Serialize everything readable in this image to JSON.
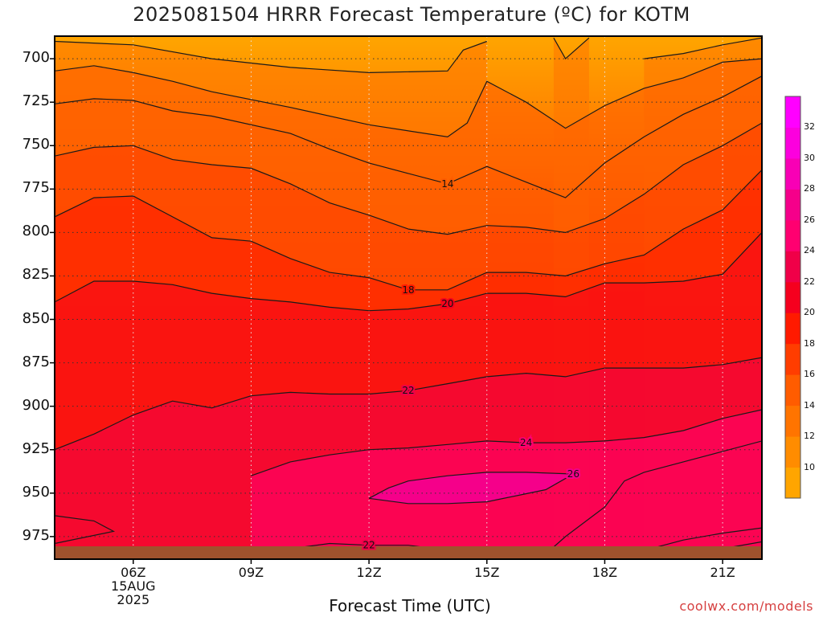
{
  "chart_data": {
    "type": "heatmap",
    "title": "2025081504 HRRR Forecast Temperature (ºC) for KOTM",
    "xlabel": "Forecast Time (UTC)",
    "ylabel": "",
    "x_ticks": [
      {
        "hour": 6,
        "label": "06Z"
      },
      {
        "hour": 9,
        "label": "09Z"
      },
      {
        "hour": 12,
        "label": "12Z"
      },
      {
        "hour": 15,
        "label": "15Z"
      },
      {
        "hour": 18,
        "label": "18Z"
      },
      {
        "hour": 21,
        "label": "21Z"
      }
    ],
    "x_date_lines": [
      "15AUG",
      "2025"
    ],
    "xlim": [
      4,
      22
    ],
    "y_ticks": [
      700,
      725,
      750,
      775,
      800,
      825,
      850,
      875,
      900,
      925,
      950,
      975
    ],
    "ylim": [
      687,
      988
    ],
    "y_inverted": true,
    "grid": true,
    "colorbar": {
      "levels": [
        8,
        10,
        12,
        14,
        16,
        18,
        20,
        22,
        24,
        26,
        28,
        30,
        32,
        34
      ],
      "tick_labels": [
        "10",
        "12",
        "14",
        "16",
        "18",
        "20",
        "22",
        "24",
        "26",
        "28",
        "30",
        "32"
      ],
      "colors": [
        "#ffa500",
        "#ff8c00",
        "#ff7400",
        "#ff5c00",
        "#ff3d00",
        "#ff1a00",
        "#f5001e",
        "#f00048",
        "#ff0070",
        "#f5008a",
        "#f800b5",
        "#fc00de",
        "#ff00ff"
      ]
    },
    "contours": [
      {
        "level": 12,
        "label": "",
        "points": [
          [
            4,
            690
          ],
          [
            6,
            692
          ],
          [
            8,
            700
          ],
          [
            10,
            705
          ],
          [
            12,
            708
          ],
          [
            14,
            707
          ],
          [
            14.4,
            695
          ],
          [
            15,
            690
          ]
        ]
      },
      {
        "level": 12,
        "label": "",
        "points": [
          [
            16.7,
            688
          ],
          [
            17,
            700
          ],
          [
            17.6,
            688
          ]
        ]
      },
      {
        "level": 12,
        "label": "",
        "points": [
          [
            19,
            700
          ],
          [
            20,
            697
          ],
          [
            21,
            692
          ],
          [
            22,
            688
          ]
        ]
      },
      {
        "level": 14,
        "label": "",
        "points": [
          [
            4,
            707
          ],
          [
            5,
            704
          ],
          [
            6,
            708
          ],
          [
            7,
            713
          ],
          [
            8,
            719
          ],
          [
            10,
            728
          ],
          [
            12,
            738
          ],
          [
            14,
            745
          ],
          [
            14.5,
            737
          ],
          [
            15,
            713
          ],
          [
            16,
            725
          ],
          [
            17,
            740
          ],
          [
            18,
            727
          ],
          [
            19,
            717
          ],
          [
            20,
            711
          ],
          [
            21,
            702
          ],
          [
            22,
            700
          ]
        ]
      },
      {
        "level": 14,
        "label": "14",
        "points": [
          [
            4,
            726
          ],
          [
            5,
            723
          ],
          [
            6,
            724
          ],
          [
            7,
            730
          ],
          [
            8,
            733
          ],
          [
            10,
            743
          ],
          [
            11,
            752
          ],
          [
            12,
            760
          ],
          [
            13,
            766
          ],
          [
            14,
            772
          ],
          [
            15,
            762
          ],
          [
            16,
            771
          ],
          [
            17,
            780
          ],
          [
            18,
            760
          ],
          [
            19,
            745
          ],
          [
            20,
            732
          ],
          [
            21,
            722
          ],
          [
            22,
            710
          ]
        ]
      },
      {
        "level": 16,
        "label": "",
        "points": [
          [
            4,
            756
          ],
          [
            5,
            751
          ],
          [
            6,
            750
          ],
          [
            7,
            758
          ],
          [
            8,
            761
          ],
          [
            9,
            763
          ],
          [
            10,
            772
          ],
          [
            11,
            783
          ],
          [
            12,
            790
          ],
          [
            13,
            798
          ],
          [
            14,
            801
          ],
          [
            15,
            796
          ],
          [
            16,
            797
          ],
          [
            17,
            800
          ],
          [
            18,
            792
          ],
          [
            19,
            778
          ],
          [
            20,
            761
          ],
          [
            21,
            750
          ],
          [
            22,
            737
          ]
        ]
      },
      {
        "level": 18,
        "label": "18",
        "points": [
          [
            4,
            791
          ],
          [
            5,
            780
          ],
          [
            6,
            779
          ],
          [
            7,
            791
          ],
          [
            8,
            803
          ],
          [
            9,
            805
          ],
          [
            10,
            815
          ],
          [
            11,
            823
          ],
          [
            12,
            826
          ],
          [
            13,
            833
          ],
          [
            14,
            833
          ],
          [
            15,
            823
          ],
          [
            16,
            823
          ],
          [
            17,
            825
          ],
          [
            18,
            818
          ],
          [
            19,
            813
          ],
          [
            20,
            798
          ],
          [
            21,
            787
          ],
          [
            22,
            764
          ]
        ]
      },
      {
        "level": 20,
        "label": "20",
        "points": [
          [
            4,
            840
          ],
          [
            5,
            828
          ],
          [
            6,
            828
          ],
          [
            7,
            830
          ],
          [
            8,
            835
          ],
          [
            9,
            838
          ],
          [
            10,
            840
          ],
          [
            11,
            843
          ],
          [
            12,
            845
          ],
          [
            13,
            844
          ],
          [
            14,
            841
          ],
          [
            15,
            835
          ],
          [
            16,
            835
          ],
          [
            17,
            837
          ],
          [
            18,
            829
          ],
          [
            19,
            829
          ],
          [
            20,
            828
          ],
          [
            21,
            824
          ],
          [
            21.5,
            812
          ],
          [
            22,
            800
          ]
        ]
      },
      {
        "level": 22,
        "label": "22",
        "points": [
          [
            4,
            925
          ],
          [
            5,
            916
          ],
          [
            6,
            905
          ],
          [
            7,
            897
          ],
          [
            8,
            901
          ],
          [
            9,
            894
          ],
          [
            10,
            892
          ],
          [
            11,
            893
          ],
          [
            12,
            893
          ],
          [
            13,
            891
          ],
          [
            14,
            887
          ],
          [
            15,
            883
          ],
          [
            16,
            881
          ],
          [
            17,
            883
          ],
          [
            18,
            878
          ],
          [
            19,
            878
          ],
          [
            20,
            878
          ],
          [
            21,
            876
          ],
          [
            22,
            872
          ]
        ]
      },
      {
        "level": 24,
        "label": "24",
        "points": [
          [
            9,
            940
          ],
          [
            10,
            932
          ],
          [
            11,
            928
          ],
          [
            12,
            925
          ],
          [
            13,
            924
          ],
          [
            14,
            922
          ],
          [
            15,
            920
          ],
          [
            16,
            921
          ],
          [
            17,
            921
          ],
          [
            18,
            920
          ],
          [
            19,
            918
          ],
          [
            20,
            914
          ],
          [
            21,
            907
          ],
          [
            22,
            902
          ]
        ]
      },
      {
        "level": 26,
        "label": "26",
        "points": [
          [
            12,
            953
          ],
          [
            12.5,
            947
          ],
          [
            13,
            943
          ],
          [
            14,
            940
          ],
          [
            15,
            938
          ],
          [
            16,
            938
          ],
          [
            17.2,
            939
          ],
          [
            16.5,
            948
          ],
          [
            15,
            955
          ],
          [
            14,
            956
          ],
          [
            13,
            956
          ],
          [
            12,
            953
          ]
        ]
      },
      {
        "level": 26,
        "label": "",
        "points": [
          [
            16.5,
            985
          ],
          [
            17,
            975
          ],
          [
            18,
            958
          ],
          [
            18.5,
            943
          ],
          [
            19,
            938
          ],
          [
            20,
            932
          ],
          [
            21,
            926
          ],
          [
            22,
            920
          ]
        ]
      },
      {
        "level": 22,
        "label": "",
        "points": [
          [
            4,
            963
          ],
          [
            5,
            966
          ],
          [
            5.5,
            972
          ],
          [
            4,
            979
          ]
        ]
      },
      {
        "level": 22,
        "label": "22",
        "points": [
          [
            5,
            986
          ],
          [
            6,
            984
          ],
          [
            8,
            982
          ],
          [
            10,
            982
          ],
          [
            11,
            979
          ],
          [
            12,
            980
          ],
          [
            13,
            980
          ],
          [
            14.7,
            985
          ],
          [
            14.5,
            984
          ],
          [
            14.1,
            981
          ],
          [
            13.7,
            983
          ]
        ]
      },
      {
        "level": 28,
        "label": "",
        "points": [
          [
            18.5,
            988
          ],
          [
            19,
            983
          ],
          [
            20,
            977
          ],
          [
            21,
            973
          ],
          [
            22,
            970
          ]
        ]
      },
      {
        "level": 30,
        "label": "",
        "points": [
          [
            20,
            985
          ],
          [
            21,
            982
          ],
          [
            22,
            978
          ]
        ]
      }
    ]
  },
  "credit": "coolwx.com/models"
}
